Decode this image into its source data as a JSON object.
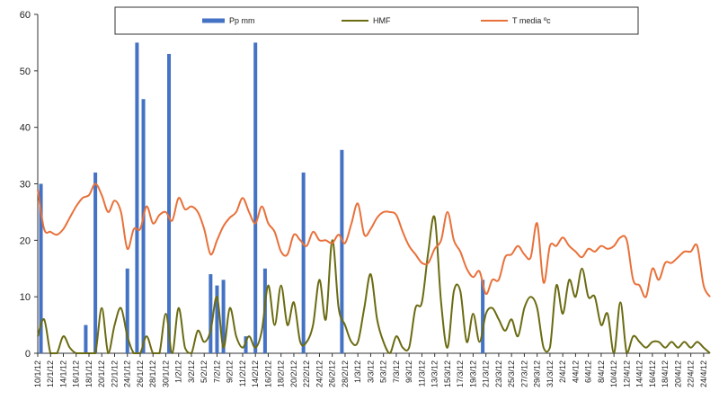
{
  "chart_data": {
    "type": "bar+line",
    "title": "",
    "xlabel": "",
    "ylabel": "",
    "ylim": [
      0,
      60
    ],
    "yticks": [
      0,
      10,
      20,
      30,
      40,
      50,
      60
    ],
    "grid": false,
    "legend_position": "top",
    "x_start": "10/1/12",
    "x_end": "24/4/12",
    "n_points": 106,
    "x_tick_labels": [
      "10/1/12",
      "12/1/12",
      "14/1/12",
      "16/1/12",
      "18/1/12",
      "20/1/12",
      "22/1/12",
      "24/1/12",
      "26/1/12",
      "28/1/12",
      "30/1/12",
      "1/2/12",
      "3/2/12",
      "5/2/12",
      "7/2/12",
      "9/2/12",
      "11/2/12",
      "14/2/12",
      "16/2/12",
      "18/2/12",
      "20/2/12",
      "22/2/12",
      "24/2/12",
      "26/2/12",
      "28/2/12",
      "1/3/12",
      "3/3/12",
      "5/3/12",
      "7/3/12",
      "9/3/12",
      "11/3/12",
      "13/3/12",
      "15/3/12",
      "17/3/12",
      "19/3/12",
      "21/3/12",
      "23/3/12",
      "25/3/12",
      "27/3/12",
      "29/3/12",
      "31/3/12",
      "2/4/12",
      "4/4/12",
      "6/4/12",
      "8/4/12",
      "10/4/12",
      "12/4/12",
      "14/4/12",
      "16/4/12",
      "18/4/12",
      "20/4/12",
      "22/4/12",
      "24/4/12"
    ],
    "series": [
      {
        "name": "Pp mm",
        "type": "bar",
        "color": "#4472C4",
        "points": [
          [
            1,
            30
          ],
          [
            15,
            5
          ],
          [
            18,
            32
          ],
          [
            28,
            15
          ],
          [
            31,
            55
          ],
          [
            33,
            45
          ],
          [
            41,
            53
          ],
          [
            54,
            14
          ],
          [
            56,
            12
          ],
          [
            58,
            13
          ],
          [
            65,
            3
          ],
          [
            68,
            55
          ],
          [
            71,
            15
          ],
          [
            83,
            32
          ],
          [
            95,
            36
          ],
          [
            139,
            13
          ]
        ]
      },
      {
        "name": "HMF",
        "type": "line",
        "color": "#6B6B12",
        "values": [
          3,
          6,
          0,
          0,
          3,
          1,
          0,
          0,
          0,
          0,
          8,
          0,
          5,
          8,
          3,
          0,
          0,
          3,
          0,
          0,
          7,
          0,
          8,
          1,
          0,
          4,
          2,
          4,
          10,
          1,
          8,
          3,
          1,
          3,
          1,
          4,
          12,
          5,
          12,
          5,
          9,
          2,
          2,
          5,
          13,
          6,
          20,
          8,
          5,
          2,
          2,
          8,
          14,
          6,
          2,
          0,
          3,
          1,
          1,
          8,
          9,
          18,
          24,
          9,
          1,
          11,
          11,
          2,
          7,
          2,
          7,
          8,
          6,
          4,
          6,
          3,
          8,
          10,
          8,
          1,
          1,
          12,
          7,
          13,
          10,
          15,
          10,
          10,
          5,
          7,
          0,
          9,
          0,
          3,
          2,
          1,
          2,
          2,
          1,
          2,
          1,
          2,
          1,
          2,
          1,
          0
        ]
      },
      {
        "name": "T media ºc",
        "type": "line",
        "color": "#E8713A",
        "values": [
          29,
          22,
          21.5,
          21,
          22,
          24,
          26,
          27.5,
          28,
          30,
          28,
          25,
          27,
          25,
          18.5,
          22,
          22,
          26,
          23,
          24.5,
          25,
          23.5,
          27.5,
          25.5,
          26,
          25,
          22,
          17.5,
          20,
          22.5,
          24,
          25,
          27.5,
          25,
          23,
          26,
          23,
          21.5,
          18,
          17.5,
          21,
          20,
          19,
          21.5,
          20,
          20,
          19.5,
          21,
          19.5,
          23,
          26.5,
          21,
          22,
          24,
          25,
          25,
          24.5,
          21.5,
          19,
          17.5,
          16,
          16,
          18.5,
          20,
          25,
          20,
          18,
          15,
          13.5,
          14.5,
          10.5,
          13,
          13,
          17,
          17.5,
          19,
          17.5,
          17,
          23,
          12.5,
          19,
          19,
          20.5,
          19,
          18,
          17,
          18.5,
          18,
          19,
          18.5,
          19,
          20.5,
          20,
          13,
          12,
          10,
          15,
          13,
          16,
          16,
          17,
          18,
          18,
          19,
          12,
          10
        ]
      }
    ]
  }
}
